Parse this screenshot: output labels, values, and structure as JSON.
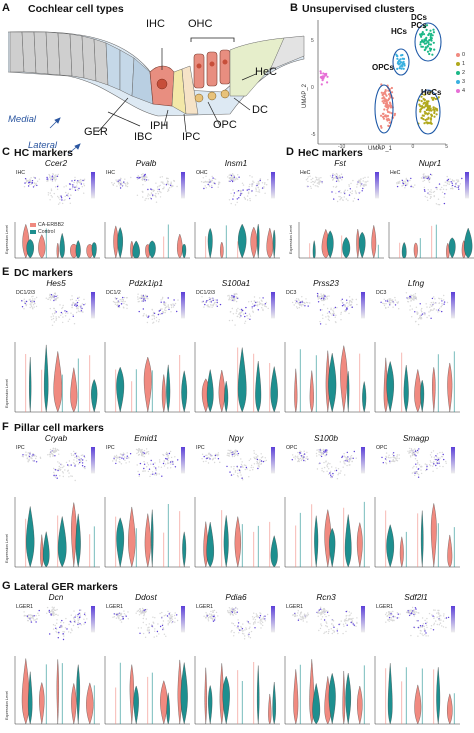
{
  "panelA": {
    "letter": "A",
    "title": "Cochlear cell types",
    "labels": {
      "ihc": "IHC",
      "ohc": "OHC",
      "hec": "HeC",
      "dc": "DC",
      "opc": "OPC",
      "ipc": "IPC",
      "iph": "IPH",
      "ibc": "IBC",
      "ger": "GER",
      "medial": "Medial",
      "lateral": "Lateral"
    }
  },
  "panelB": {
    "letter": "B",
    "title": "Unsupervised clusters",
    "clusters": {
      "dcs": "DCs",
      "pcs": "PCs",
      "hcs": "HCs",
      "opcs": "OPCs",
      "hecs": "HeCs"
    },
    "legend": [
      {
        "label": "0",
        "color": "#f08a80"
      },
      {
        "label": "1",
        "color": "#b0a81c"
      },
      {
        "label": "2",
        "color": "#1cb887"
      },
      {
        "label": "3",
        "color": "#3ab0e0"
      },
      {
        "label": "4",
        "color": "#e66fd6"
      }
    ],
    "x_label": "UMAP_1",
    "y_label": "UMAP_2",
    "x_ticks": [
      "-10",
      "-5",
      "0",
      "5"
    ],
    "y_ticks": [
      "5",
      "0",
      "-5"
    ]
  },
  "panelC": {
    "letter": "C",
    "title": "HC markers",
    "genes": [
      {
        "name": "Ccer2",
        "cell": "IHC"
      },
      {
        "name": "Pvalb",
        "cell": "IHC"
      },
      {
        "name": "Insm1",
        "cell": "OHC"
      }
    ]
  },
  "panelD": {
    "letter": "D",
    "title": "HeC markers",
    "genes": [
      {
        "name": "Fst",
        "cell": "HeC"
      },
      {
        "name": "Nupr1",
        "cell": "HeC"
      }
    ]
  },
  "panelE": {
    "letter": "E",
    "title": "DC markers",
    "genes": [
      {
        "name": "Hes5",
        "cell": "DC1/2/3"
      },
      {
        "name": "Pdzk1ip1",
        "cell": "DC1/2"
      },
      {
        "name": "S100a1",
        "cell": "DC1/2/3"
      },
      {
        "name": "Prss23",
        "cell": "DC3"
      },
      {
        "name": "Lfng",
        "cell": "DC3"
      }
    ]
  },
  "panelF": {
    "letter": "F",
    "title": "Pillar cell markers",
    "genes": [
      {
        "name": "Cryab",
        "cell": "IPC"
      },
      {
        "name": "Emid1",
        "cell": "IPC"
      },
      {
        "name": "Npy",
        "cell": "IPC"
      },
      {
        "name": "S100b",
        "cell": "OPC"
      },
      {
        "name": "Smagp",
        "cell": "OPC"
      }
    ]
  },
  "panelG": {
    "letter": "G",
    "title": "Lateral GER markers",
    "genes": [
      {
        "name": "Dcn",
        "cell": "LGER1"
      },
      {
        "name": "Ddost",
        "cell": "LGER1"
      },
      {
        "name": "Pdia6",
        "cell": "LGER1"
      },
      {
        "name": "Rcn3",
        "cell": "LGER1"
      },
      {
        "name": "Sdf2l1",
        "cell": "LGER1"
      }
    ]
  },
  "violin_legend": [
    {
      "label": "CA-ERBB2",
      "color": "#f08a80"
    },
    {
      "label": "Control",
      "color": "#1e8f8f"
    }
  ],
  "y_axis_label": "Expression Level",
  "colors": {
    "ca_erbb2": "#f08a80",
    "control": "#1e8f8f",
    "feature_high": "#5b3fd8",
    "feature_low": "#d8d8d8",
    "ellipse": "#1f5aa8"
  }
}
